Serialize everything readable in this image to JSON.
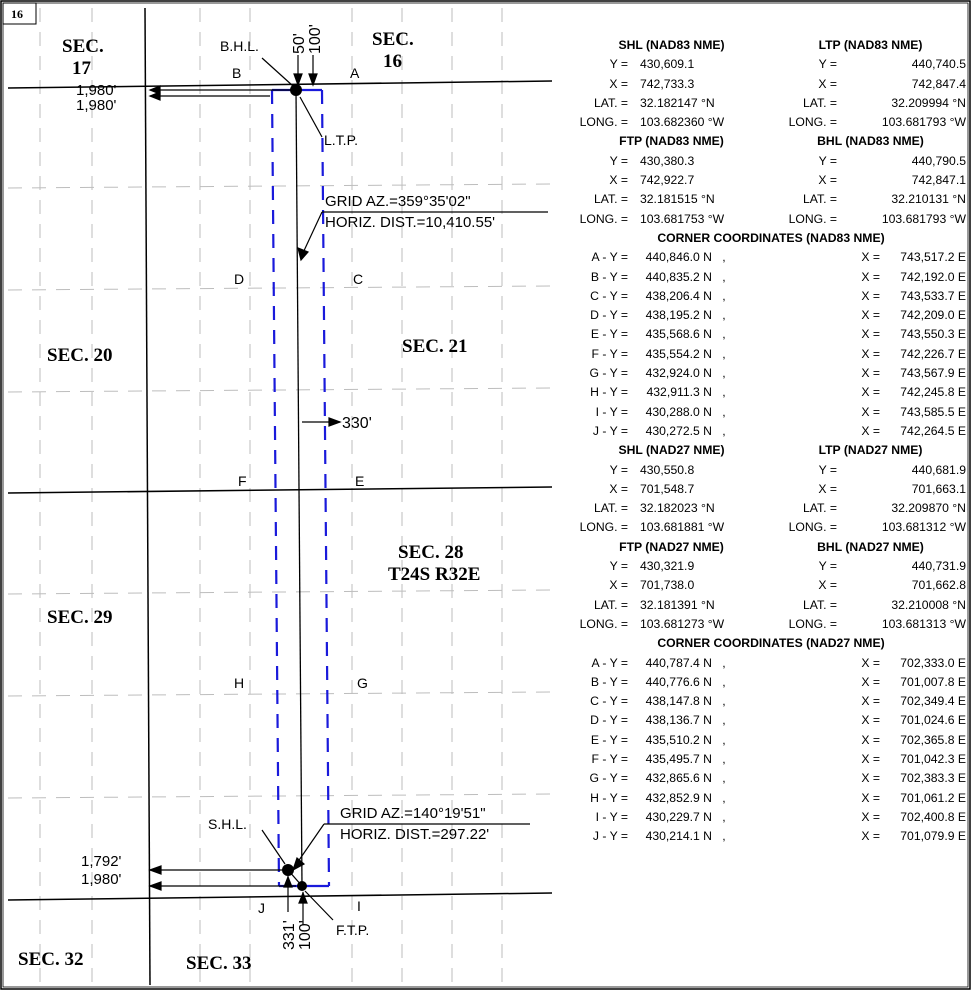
{
  "page_number": "16",
  "sections": {
    "s16": "SEC.\n16",
    "s17_a": "SEC.",
    "s17_b": "17",
    "s16_a": "SEC.",
    "s16_b": "16",
    "s20": "SEC. 20",
    "s21": "SEC. 21",
    "s28_a": "SEC. 28",
    "s28_b": "T24S R32E",
    "s29": "SEC. 29",
    "s32": "SEC. 32",
    "s33": "SEC. 33"
  },
  "labels": {
    "bhl": "B.H.L.",
    "ltp": "L.T.P.",
    "shl": "S.H.L.",
    "ftp": "F.T.P.",
    "d50": "50'",
    "d100_top": "100'",
    "d1980_a": "1,980'",
    "d1980_b": "1,980'",
    "d1792": "1,792'",
    "d1980_c": "1,980'",
    "d331": "331'",
    "d100_bot": "100'",
    "d330": "330'",
    "grid1_az": "GRID  AZ.=359°35'02\"",
    "grid1_dist": "HORIZ.  DIST.=10,410.55'",
    "grid2_az": "GRID  AZ.=140°19'51\"",
    "grid2_dist": "HORIZ.  DIST.=297.22'",
    "A": "A",
    "B": "B",
    "C": "C",
    "D": "D",
    "E": "E",
    "F": "F",
    "G": "G",
    "H": "H",
    "I": "I",
    "J": "J"
  },
  "table": {
    "nad83_pts_1": {
      "left_title": "SHL (NAD83 NME)",
      "right_title": "LTP (NAD83 NME)",
      "rows": [
        {
          "lk": "Y =",
          "lv": "430,609.1",
          "rk": "Y =",
          "rv": "440,740.5"
        },
        {
          "lk": "X =",
          "lv": "742,733.3",
          "rk": "X =",
          "rv": "742,847.4"
        },
        {
          "lk": "LAT. =",
          "lv": "32.182147 °N",
          "rk": "LAT. =",
          "rv": "32.209994 °N"
        },
        {
          "lk": "LONG. =",
          "lv": "103.682360 °W",
          "rk": "LONG. =",
          "rv": "103.681793 °W"
        }
      ]
    },
    "nad83_pts_2": {
      "left_title": "FTP (NAD83 NME)",
      "right_title": "BHL (NAD83 NME)",
      "rows": [
        {
          "lk": "Y =",
          "lv": "430,380.3",
          "rk": "Y =",
          "rv": "440,790.5"
        },
        {
          "lk": "X =",
          "lv": "742,922.7",
          "rk": "X =",
          "rv": "742,847.1"
        },
        {
          "lk": "LAT. =",
          "lv": "32.181515 °N",
          "rk": "LAT. =",
          "rv": "32.210131 °N"
        },
        {
          "lk": "LONG. =",
          "lv": "103.681753 °W",
          "rk": "LONG. =",
          "rv": "103.681793 °W"
        }
      ]
    },
    "nad83_corners": {
      "title": "CORNER COORDINATES (NAD83 NME)",
      "rows": [
        {
          "k": "A - Y =",
          "y": "440,846.0 N",
          "c": ",",
          "xk": "X =",
          "x": "743,517.2 E"
        },
        {
          "k": "B - Y =",
          "y": "440,835.2 N",
          "c": ",",
          "xk": "X =",
          "x": "742,192.0 E"
        },
        {
          "k": "C - Y =",
          "y": "438,206.4 N",
          "c": ",",
          "xk": "X =",
          "x": "743,533.7 E"
        },
        {
          "k": "D - Y =",
          "y": "438,195.2 N",
          "c": ",",
          "xk": "X =",
          "x": "742,209.0 E"
        },
        {
          "k": "E - Y =",
          "y": "435,568.6 N",
          "c": ",",
          "xk": "X =",
          "x": "743,550.3 E"
        },
        {
          "k": "F - Y =",
          "y": "435,554.2 N",
          "c": ",",
          "xk": "X =",
          "x": "742,226.7 E"
        },
        {
          "k": "G - Y =",
          "y": "432,924.0 N",
          "c": ",",
          "xk": "X =",
          "x": "743,567.9 E"
        },
        {
          "k": "H - Y =",
          "y": "432,911.3 N",
          "c": ",",
          "xk": "X =",
          "x": "742,245.8 E"
        },
        {
          "k": "I - Y =",
          "y": "430,288.0 N",
          "c": ",",
          "xk": "X =",
          "x": "743,585.5 E"
        },
        {
          "k": "J - Y =",
          "y": "430,272.5 N",
          "c": ",",
          "xk": "X =",
          "x": "742,264.5 E"
        }
      ]
    },
    "nad27_pts_1": {
      "left_title": "SHL (NAD27 NME)",
      "right_title": "LTP (NAD27 NME)",
      "rows": [
        {
          "lk": "Y =",
          "lv": "430,550.8",
          "rk": "Y =",
          "rv": "440,681.9"
        },
        {
          "lk": "X =",
          "lv": "701,548.7",
          "rk": "X =",
          "rv": "701,663.1"
        },
        {
          "lk": "LAT. =",
          "lv": "32.182023 °N",
          "rk": "LAT. =",
          "rv": "32.209870 °N"
        },
        {
          "lk": "LONG. =",
          "lv": "103.681881 °W",
          "rk": "LONG. =",
          "rv": "103.681312 °W"
        }
      ]
    },
    "nad27_pts_2": {
      "left_title": "FTP (NAD27 NME)",
      "right_title": "BHL (NAD27 NME)",
      "rows": [
        {
          "lk": "Y =",
          "lv": "430,321.9",
          "rk": "Y =",
          "rv": "440,731.9"
        },
        {
          "lk": "X =",
          "lv": "701,738.0",
          "rk": "X =",
          "rv": "701,662.8"
        },
        {
          "lk": "LAT. =",
          "lv": "32.181391 °N",
          "rk": "LAT. =",
          "rv": "32.210008 °N"
        },
        {
          "lk": "LONG. =",
          "lv": "103.681273 °W",
          "rk": "LONG. =",
          "rv": "103.681313 °W"
        }
      ]
    },
    "nad27_corners": {
      "title": "CORNER COORDINATES (NAD27 NME)",
      "rows": [
        {
          "k": "A - Y =",
          "y": "440,787.4 N",
          "c": ",",
          "xk": "X =",
          "x": "702,333.0 E"
        },
        {
          "k": "B - Y =",
          "y": "440,776.6 N",
          "c": ",",
          "xk": "X =",
          "x": "701,007.8 E"
        },
        {
          "k": "C - Y =",
          "y": "438,147.8 N",
          "c": ",",
          "xk": "X =",
          "x": "702,349.4 E"
        },
        {
          "k": "D - Y =",
          "y": "438,136.7 N",
          "c": ",",
          "xk": "X =",
          "x": "701,024.6 E"
        },
        {
          "k": "E - Y =",
          "y": "435,510.2 N",
          "c": ",",
          "xk": "X =",
          "x": "702,365.8 E"
        },
        {
          "k": "F - Y =",
          "y": "435,495.7 N",
          "c": ",",
          "xk": "X =",
          "x": "701,042.3 E"
        },
        {
          "k": "G - Y =",
          "y": "432,865.6 N",
          "c": ",",
          "xk": "X =",
          "x": "702,383.3 E"
        },
        {
          "k": "H - Y =",
          "y": "432,852.9 N",
          "c": ",",
          "xk": "X =",
          "x": "701,061.2 E"
        },
        {
          "k": "I - Y =",
          "y": "430,229.7 N",
          "c": ",",
          "xk": "X =",
          "x": "702,400.8 E"
        },
        {
          "k": "J - Y =",
          "y": "430,214.1 N",
          "c": ",",
          "xk": "X =",
          "x": "701,079.9 E"
        }
      ]
    }
  },
  "colors": {
    "lease_outline": "#1a1adb",
    "ink": "#000000",
    "grid_dash": "#c8c8c8"
  }
}
